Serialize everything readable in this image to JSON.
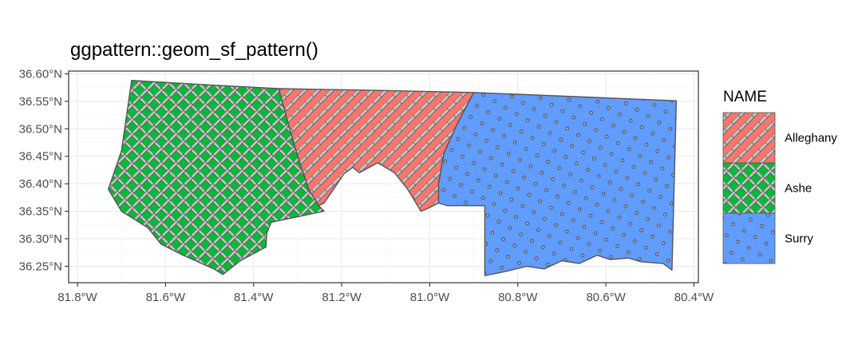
{
  "chart_data": {
    "type": "map",
    "title": "ggpattern::geom_sf_pattern()",
    "xlabel": "",
    "ylabel": "",
    "xlim": [
      -81.82,
      -80.39
    ],
    "ylim": [
      36.22,
      36.605
    ],
    "x_ticks": [
      -81.8,
      -81.6,
      -81.4,
      -81.2,
      -81.0,
      -80.8,
      -80.6,
      -80.4
    ],
    "x_tick_labels": [
      "81.8°W",
      "81.6°W",
      "81.4°W",
      "81.2°W",
      "81.0°W",
      "80.8°W",
      "80.6°W",
      "80.4°W"
    ],
    "y_ticks": [
      36.25,
      36.3,
      36.35,
      36.4,
      36.45,
      36.5,
      36.55,
      36.6
    ],
    "y_tick_labels": [
      "36.25°N",
      "36.30°N",
      "36.35°N",
      "36.40°N",
      "36.45°N",
      "36.50°N",
      "36.55°N",
      "36.60°N"
    ],
    "grid": true,
    "legend": {
      "title": "NAME",
      "placement": "right",
      "entries": [
        "Alleghany",
        "Ashe",
        "Surry"
      ]
    },
    "series": [
      {
        "name": "Alleghany",
        "fill": "#F8766D",
        "pattern": "stripe",
        "coords": [
          [
            -81.343,
            36.573
          ],
          [
            -81.125,
            36.57
          ],
          [
            -80.9,
            36.566
          ],
          [
            -80.94,
            36.505
          ],
          [
            -80.968,
            36.455
          ],
          [
            -80.98,
            36.4
          ],
          [
            -80.98,
            36.365
          ],
          [
            -81.005,
            36.355
          ],
          [
            -81.02,
            36.35
          ],
          [
            -81.05,
            36.39
          ],
          [
            -81.08,
            36.42
          ],
          [
            -81.118,
            36.438
          ],
          [
            -81.16,
            36.42
          ],
          [
            -81.175,
            36.43
          ],
          [
            -81.195,
            36.418
          ],
          [
            -81.22,
            36.388
          ],
          [
            -81.24,
            36.365
          ],
          [
            -81.252,
            36.36
          ],
          [
            -81.275,
            36.39
          ],
          [
            -81.3,
            36.45
          ],
          [
            -81.32,
            36.505
          ],
          [
            -81.343,
            36.573
          ]
        ]
      },
      {
        "name": "Ashe",
        "fill": "#00BA38",
        "pattern": "crosshatch",
        "coords": [
          [
            -81.677,
            36.588
          ],
          [
            -81.505,
            36.58
          ],
          [
            -81.343,
            36.573
          ],
          [
            -81.32,
            36.505
          ],
          [
            -81.3,
            36.45
          ],
          [
            -81.275,
            36.39
          ],
          [
            -81.252,
            36.36
          ],
          [
            -81.24,
            36.35
          ],
          [
            -81.3,
            36.34
          ],
          [
            -81.36,
            36.33
          ],
          [
            -81.37,
            36.31
          ],
          [
            -81.372,
            36.285
          ],
          [
            -81.395,
            36.275
          ],
          [
            -81.43,
            36.26
          ],
          [
            -81.47,
            36.235
          ],
          [
            -81.49,
            36.245
          ],
          [
            -81.56,
            36.27
          ],
          [
            -81.61,
            36.29
          ],
          [
            -81.64,
            36.32
          ],
          [
            -81.7,
            36.35
          ],
          [
            -81.73,
            36.39
          ],
          [
            -81.7,
            36.46
          ],
          [
            -81.677,
            36.588
          ]
        ]
      },
      {
        "name": "Surry",
        "fill": "#619CFF",
        "pattern": "circles",
        "coords": [
          [
            -80.9,
            36.566
          ],
          [
            -80.44,
            36.551
          ],
          [
            -80.45,
            36.243
          ],
          [
            -80.47,
            36.255
          ],
          [
            -80.52,
            36.258
          ],
          [
            -80.55,
            36.265
          ],
          [
            -80.59,
            36.262
          ],
          [
            -80.62,
            36.27
          ],
          [
            -80.66,
            36.255
          ],
          [
            -80.7,
            36.26
          ],
          [
            -80.74,
            36.245
          ],
          [
            -80.78,
            36.25
          ],
          [
            -80.83,
            36.24
          ],
          [
            -80.875,
            36.233
          ],
          [
            -80.875,
            36.36
          ],
          [
            -80.96,
            36.36
          ],
          [
            -80.98,
            36.365
          ],
          [
            -80.98,
            36.4
          ],
          [
            -80.968,
            36.455
          ],
          [
            -80.94,
            36.505
          ],
          [
            -80.9,
            36.566
          ]
        ]
      }
    ]
  }
}
